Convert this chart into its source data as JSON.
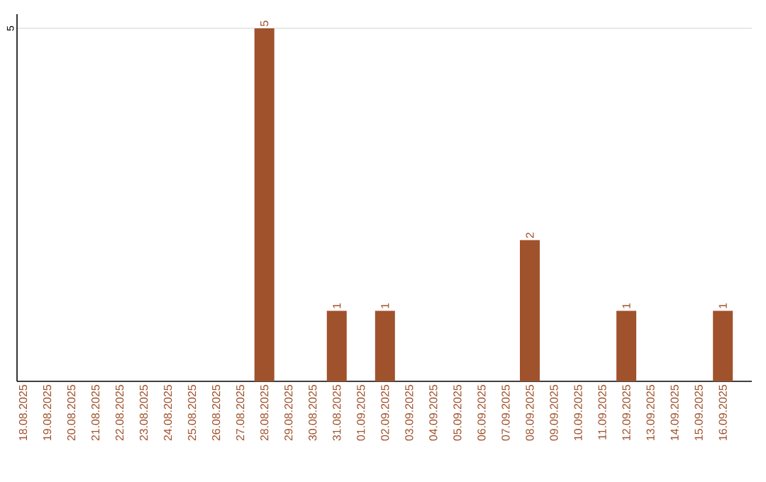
{
  "chart_data": {
    "type": "bar",
    "color": "#a0522d",
    "categories": [
      "18.08.2025",
      "19.08.2025",
      "20.08.2025",
      "21.08.2025",
      "22.08.2025",
      "23.08.2025",
      "24.08.2025",
      "25.08.2025",
      "26.08.2025",
      "27.08.2025",
      "28.08.2025",
      "29.08.2025",
      "30.08.2025",
      "31.08.2025",
      "01.09.2025",
      "02.09.2025",
      "03.09.2025",
      "04.09.2025",
      "05.09.2025",
      "06.09.2025",
      "07.09.2025",
      "08.09.2025",
      "09.09.2025",
      "10.09.2025",
      "11.09.2025",
      "12.09.2025",
      "13.09.2025",
      "14.09.2025",
      "15.09.2025",
      "16.09.2025"
    ],
    "values": [
      0,
      0,
      0,
      0,
      0,
      0,
      0,
      0,
      0,
      0,
      5,
      0,
      0,
      1,
      0,
      1,
      0,
      0,
      0,
      0,
      0,
      2,
      0,
      0,
      0,
      1,
      0,
      0,
      0,
      1
    ],
    "value_labels": [
      null,
      null,
      null,
      null,
      null,
      null,
      null,
      null,
      null,
      null,
      "5",
      null,
      null,
      "1",
      null,
      "1",
      null,
      null,
      null,
      null,
      null,
      "2",
      null,
      null,
      null,
      "1",
      null,
      null,
      null,
      "1"
    ],
    "ylim": [
      0,
      5.2
    ],
    "yticks": [
      5
    ],
    "grid": "y"
  }
}
